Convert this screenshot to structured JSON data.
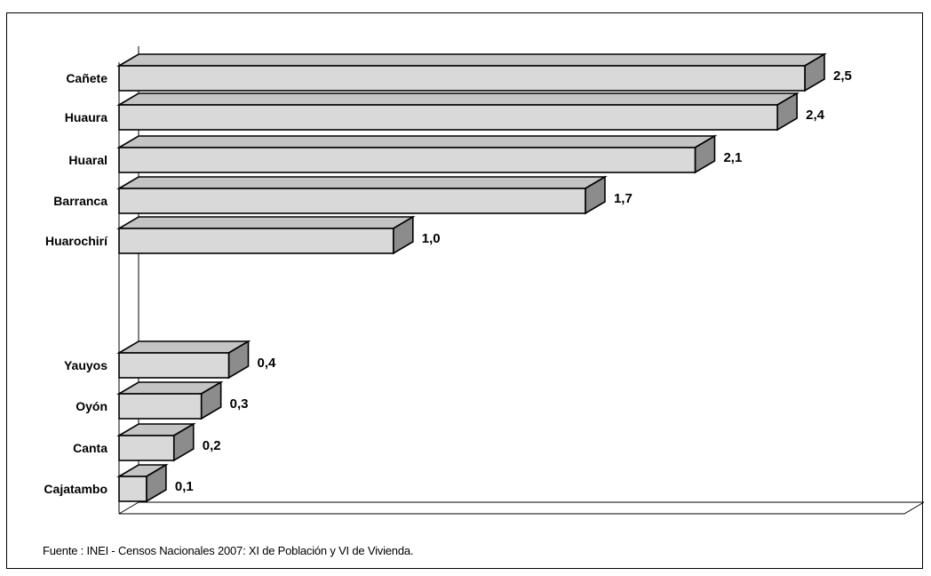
{
  "chart_data": {
    "type": "bar",
    "orientation": "horizontal",
    "style": "3d",
    "categories": [
      "Cañete",
      "Huaura",
      "Huaral",
      "Barranca",
      "Huarochirí",
      "",
      "Yauyos",
      "Oyón",
      "Canta",
      "Cajatambo"
    ],
    "values": [
      2.5,
      2.4,
      2.1,
      1.7,
      1.0,
      null,
      0.4,
      0.3,
      0.2,
      0.1
    ],
    "value_labels": [
      "2,5",
      "2,4",
      "2,1",
      "1,7",
      "1,0",
      "",
      "0,4",
      "0,3",
      "0,2",
      "0,1"
    ],
    "title": "",
    "xlabel": "",
    "ylabel": "",
    "xlim": [
      0,
      2.5
    ],
    "grid": false,
    "legend": "none",
    "colors": {
      "bar_front": "#d9d9d9",
      "bar_top": "#c4c4c4",
      "bar_side": "#8c8c8c",
      "outline": "#000000"
    }
  },
  "source_note": "Fuente : INEI - Censos Nacionales 2007: XI de Población y VI de Vivienda."
}
